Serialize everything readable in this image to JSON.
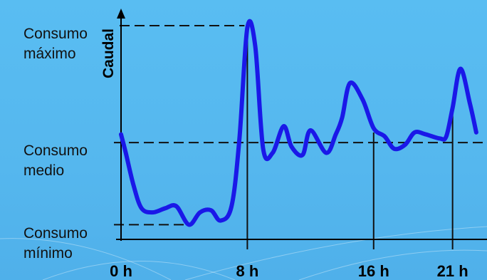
{
  "chart_data": {
    "type": "line",
    "title": "",
    "ylabel": "Caudal",
    "xlabel": "",
    "x_ticks": [
      {
        "value": 0,
        "label": "0 h"
      },
      {
        "value": 8,
        "label": "8 h"
      },
      {
        "value": 16,
        "label": "16 h"
      },
      {
        "value": 21,
        "label": "21 h"
      }
    ],
    "xlim": [
      0,
      23
    ],
    "ylim": [
      0,
      100
    ],
    "reference_levels": [
      {
        "key": "max",
        "label_lines": [
          "Consumo",
          "máximo"
        ],
        "value": 100
      },
      {
        "key": "mean",
        "label_lines": [
          "Consumo",
          "medio"
        ],
        "value": 43
      },
      {
        "key": "min",
        "label_lines": [
          "Consumo",
          "mínimo"
        ],
        "value": 3
      }
    ],
    "series": [
      {
        "color": "#1a18e8",
        "points": [
          [
            0,
            47
          ],
          [
            0.3,
            38
          ],
          [
            0.8,
            22
          ],
          [
            1.3,
            11
          ],
          [
            2,
            9
          ],
          [
            2.8,
            11
          ],
          [
            3.5,
            12
          ],
          [
            4.3,
            3
          ],
          [
            5,
            9
          ],
          [
            5.7,
            10
          ],
          [
            6.3,
            5
          ],
          [
            7,
            12
          ],
          [
            7.5,
            45
          ],
          [
            8,
            99
          ],
          [
            8.5,
            90
          ],
          [
            9,
            40
          ],
          [
            9.6,
            38
          ],
          [
            10.3,
            51
          ],
          [
            10.8,
            41
          ],
          [
            11.5,
            37
          ],
          [
            12,
            49
          ],
          [
            13,
            38
          ],
          [
            13.6,
            47
          ],
          [
            14,
            55
          ],
          [
            14.5,
            72
          ],
          [
            15.3,
            64
          ],
          [
            16,
            50
          ],
          [
            16.7,
            46
          ],
          [
            17.3,
            40
          ],
          [
            18,
            42
          ],
          [
            18.6,
            48
          ],
          [
            19.3,
            47
          ],
          [
            20.2,
            45
          ],
          [
            20.6,
            46
          ],
          [
            21,
            60
          ],
          [
            21.5,
            79
          ],
          [
            22.1,
            62
          ],
          [
            22.5,
            48
          ]
        ]
      }
    ]
  }
}
